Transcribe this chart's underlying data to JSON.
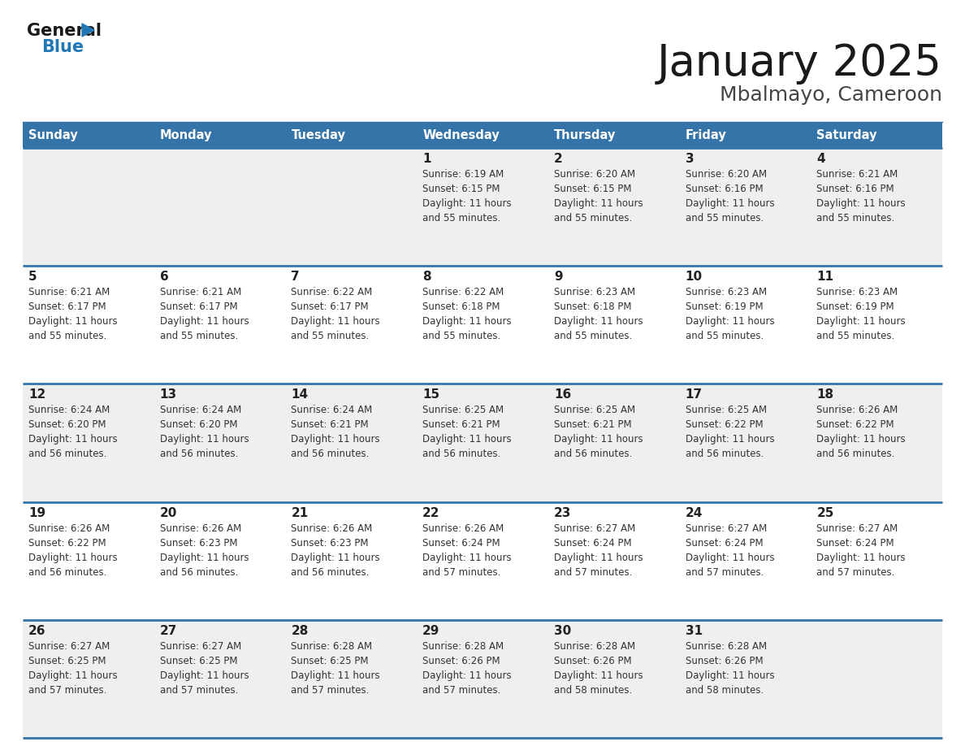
{
  "title": "January 2025",
  "subtitle": "Mbalmayo, Cameroon",
  "days_of_week": [
    "Sunday",
    "Monday",
    "Tuesday",
    "Wednesday",
    "Thursday",
    "Friday",
    "Saturday"
  ],
  "header_bg": "#3574a8",
  "header_text": "#ffffff",
  "row_bg_light": "#efefef",
  "row_bg_white": "#ffffff",
  "border_color": "#3574a8",
  "day_number_color": "#222222",
  "cell_text_color": "#333333",
  "title_color": "#1a1a1a",
  "subtitle_color": "#444444",
  "logo_general_color": "#1a1a1a",
  "logo_blue_color": "#2278b5",
  "calendar_data": [
    [
      {
        "day": null,
        "info": ""
      },
      {
        "day": null,
        "info": ""
      },
      {
        "day": null,
        "info": ""
      },
      {
        "day": 1,
        "info": "Sunrise: 6:19 AM\nSunset: 6:15 PM\nDaylight: 11 hours\nand 55 minutes."
      },
      {
        "day": 2,
        "info": "Sunrise: 6:20 AM\nSunset: 6:15 PM\nDaylight: 11 hours\nand 55 minutes."
      },
      {
        "day": 3,
        "info": "Sunrise: 6:20 AM\nSunset: 6:16 PM\nDaylight: 11 hours\nand 55 minutes."
      },
      {
        "day": 4,
        "info": "Sunrise: 6:21 AM\nSunset: 6:16 PM\nDaylight: 11 hours\nand 55 minutes."
      }
    ],
    [
      {
        "day": 5,
        "info": "Sunrise: 6:21 AM\nSunset: 6:17 PM\nDaylight: 11 hours\nand 55 minutes."
      },
      {
        "day": 6,
        "info": "Sunrise: 6:21 AM\nSunset: 6:17 PM\nDaylight: 11 hours\nand 55 minutes."
      },
      {
        "day": 7,
        "info": "Sunrise: 6:22 AM\nSunset: 6:17 PM\nDaylight: 11 hours\nand 55 minutes."
      },
      {
        "day": 8,
        "info": "Sunrise: 6:22 AM\nSunset: 6:18 PM\nDaylight: 11 hours\nand 55 minutes."
      },
      {
        "day": 9,
        "info": "Sunrise: 6:23 AM\nSunset: 6:18 PM\nDaylight: 11 hours\nand 55 minutes."
      },
      {
        "day": 10,
        "info": "Sunrise: 6:23 AM\nSunset: 6:19 PM\nDaylight: 11 hours\nand 55 minutes."
      },
      {
        "day": 11,
        "info": "Sunrise: 6:23 AM\nSunset: 6:19 PM\nDaylight: 11 hours\nand 55 minutes."
      }
    ],
    [
      {
        "day": 12,
        "info": "Sunrise: 6:24 AM\nSunset: 6:20 PM\nDaylight: 11 hours\nand 56 minutes."
      },
      {
        "day": 13,
        "info": "Sunrise: 6:24 AM\nSunset: 6:20 PM\nDaylight: 11 hours\nand 56 minutes."
      },
      {
        "day": 14,
        "info": "Sunrise: 6:24 AM\nSunset: 6:21 PM\nDaylight: 11 hours\nand 56 minutes."
      },
      {
        "day": 15,
        "info": "Sunrise: 6:25 AM\nSunset: 6:21 PM\nDaylight: 11 hours\nand 56 minutes."
      },
      {
        "day": 16,
        "info": "Sunrise: 6:25 AM\nSunset: 6:21 PM\nDaylight: 11 hours\nand 56 minutes."
      },
      {
        "day": 17,
        "info": "Sunrise: 6:25 AM\nSunset: 6:22 PM\nDaylight: 11 hours\nand 56 minutes."
      },
      {
        "day": 18,
        "info": "Sunrise: 6:26 AM\nSunset: 6:22 PM\nDaylight: 11 hours\nand 56 minutes."
      }
    ],
    [
      {
        "day": 19,
        "info": "Sunrise: 6:26 AM\nSunset: 6:22 PM\nDaylight: 11 hours\nand 56 minutes."
      },
      {
        "day": 20,
        "info": "Sunrise: 6:26 AM\nSunset: 6:23 PM\nDaylight: 11 hours\nand 56 minutes."
      },
      {
        "day": 21,
        "info": "Sunrise: 6:26 AM\nSunset: 6:23 PM\nDaylight: 11 hours\nand 56 minutes."
      },
      {
        "day": 22,
        "info": "Sunrise: 6:26 AM\nSunset: 6:24 PM\nDaylight: 11 hours\nand 57 minutes."
      },
      {
        "day": 23,
        "info": "Sunrise: 6:27 AM\nSunset: 6:24 PM\nDaylight: 11 hours\nand 57 minutes."
      },
      {
        "day": 24,
        "info": "Sunrise: 6:27 AM\nSunset: 6:24 PM\nDaylight: 11 hours\nand 57 minutes."
      },
      {
        "day": 25,
        "info": "Sunrise: 6:27 AM\nSunset: 6:24 PM\nDaylight: 11 hours\nand 57 minutes."
      }
    ],
    [
      {
        "day": 26,
        "info": "Sunrise: 6:27 AM\nSunset: 6:25 PM\nDaylight: 11 hours\nand 57 minutes."
      },
      {
        "day": 27,
        "info": "Sunrise: 6:27 AM\nSunset: 6:25 PM\nDaylight: 11 hours\nand 57 minutes."
      },
      {
        "day": 28,
        "info": "Sunrise: 6:28 AM\nSunset: 6:25 PM\nDaylight: 11 hours\nand 57 minutes."
      },
      {
        "day": 29,
        "info": "Sunrise: 6:28 AM\nSunset: 6:26 PM\nDaylight: 11 hours\nand 57 minutes."
      },
      {
        "day": 30,
        "info": "Sunrise: 6:28 AM\nSunset: 6:26 PM\nDaylight: 11 hours\nand 58 minutes."
      },
      {
        "day": 31,
        "info": "Sunrise: 6:28 AM\nSunset: 6:26 PM\nDaylight: 11 hours\nand 58 minutes."
      },
      {
        "day": null,
        "info": ""
      }
    ]
  ]
}
